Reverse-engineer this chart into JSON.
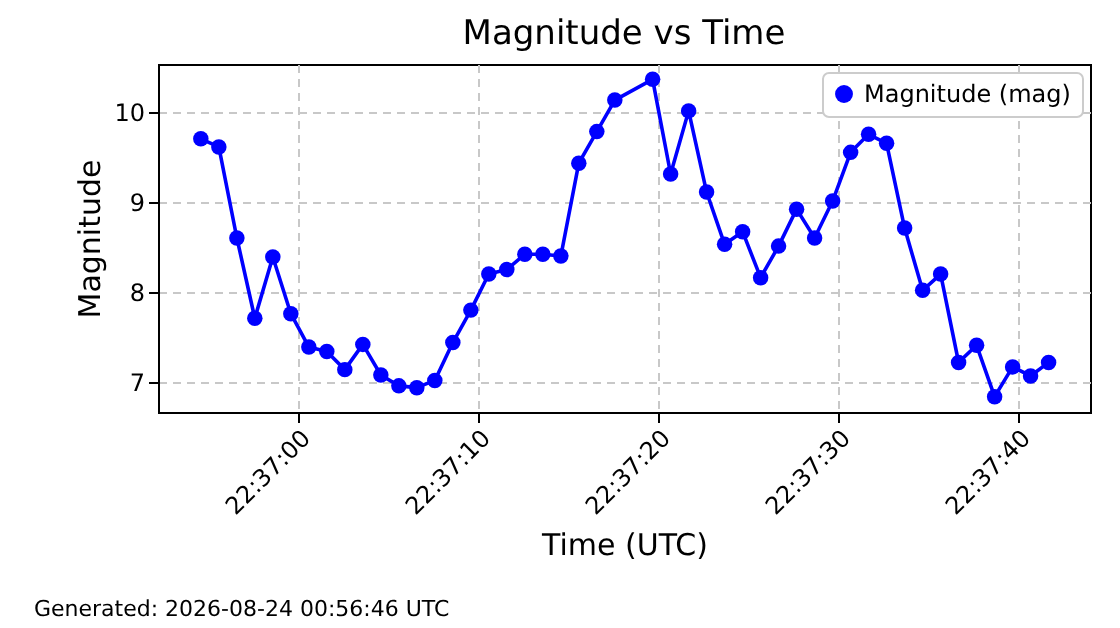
{
  "chart_data": {
    "type": "line",
    "title": "Magnitude vs Time",
    "xlabel": "Time (UTC)",
    "ylabel": "Magnitude",
    "x": [
      22.615167,
      22.615445,
      22.615723,
      22.616,
      22.616278,
      22.616556,
      22.616834,
      22.617111,
      22.617389,
      22.617667,
      22.617945,
      22.618223,
      22.6185,
      22.618778,
      22.619056,
      22.619334,
      22.619611,
      22.619889,
      22.620167,
      22.620445,
      22.620723,
      22.621,
      22.621278,
      22.621556,
      22.622139,
      22.622417,
      22.622695,
      22.622972,
      22.62325,
      22.623528,
      22.623806,
      22.624083,
      22.624361,
      22.624639,
      22.624917,
      22.625195,
      22.625472,
      22.62575,
      22.626028,
      22.626306,
      22.626584,
      22.626861,
      22.627139,
      22.627417,
      22.627695,
      22.627972,
      22.62825
    ],
    "series": [
      {
        "name": "Magnitude (mag)",
        "color": "#0000ff",
        "values": [
          9.7,
          9.61,
          8.6,
          7.71,
          8.39,
          7.76,
          7.39,
          7.34,
          7.14,
          7.42,
          7.08,
          6.96,
          6.94,
          7.02,
          7.44,
          7.8,
          8.2,
          8.25,
          8.42,
          8.42,
          8.4,
          9.43,
          9.78,
          10.13,
          10.36,
          9.31,
          10.01,
          9.11,
          8.53,
          8.67,
          8.16,
          8.51,
          8.92,
          8.6,
          9.01,
          9.55,
          9.75,
          9.65,
          8.71,
          8.02,
          8.2,
          7.22,
          7.41,
          6.84,
          7.17,
          7.07,
          7.22
        ]
      }
    ],
    "xlim": [
      22.614506,
      22.628889
    ],
    "xticks": [
      {
        "value": 22.616667,
        "label": "22:37:00"
      },
      {
        "value": 22.619444,
        "label": "22:37:10"
      },
      {
        "value": 22.622222,
        "label": "22:37:20"
      },
      {
        "value": 22.625,
        "label": "22:37:30"
      },
      {
        "value": 22.627778,
        "label": "22:37:40"
      }
    ],
    "ylim": [
      6.67,
      10.53
    ],
    "yticks": [
      7,
      8,
      9,
      10
    ],
    "grid": true,
    "legend": "top right",
    "marker": "circle",
    "line_style": "solid",
    "annotations": [
      "Generated: 2026-08-24 00:56:46 UTC"
    ]
  }
}
